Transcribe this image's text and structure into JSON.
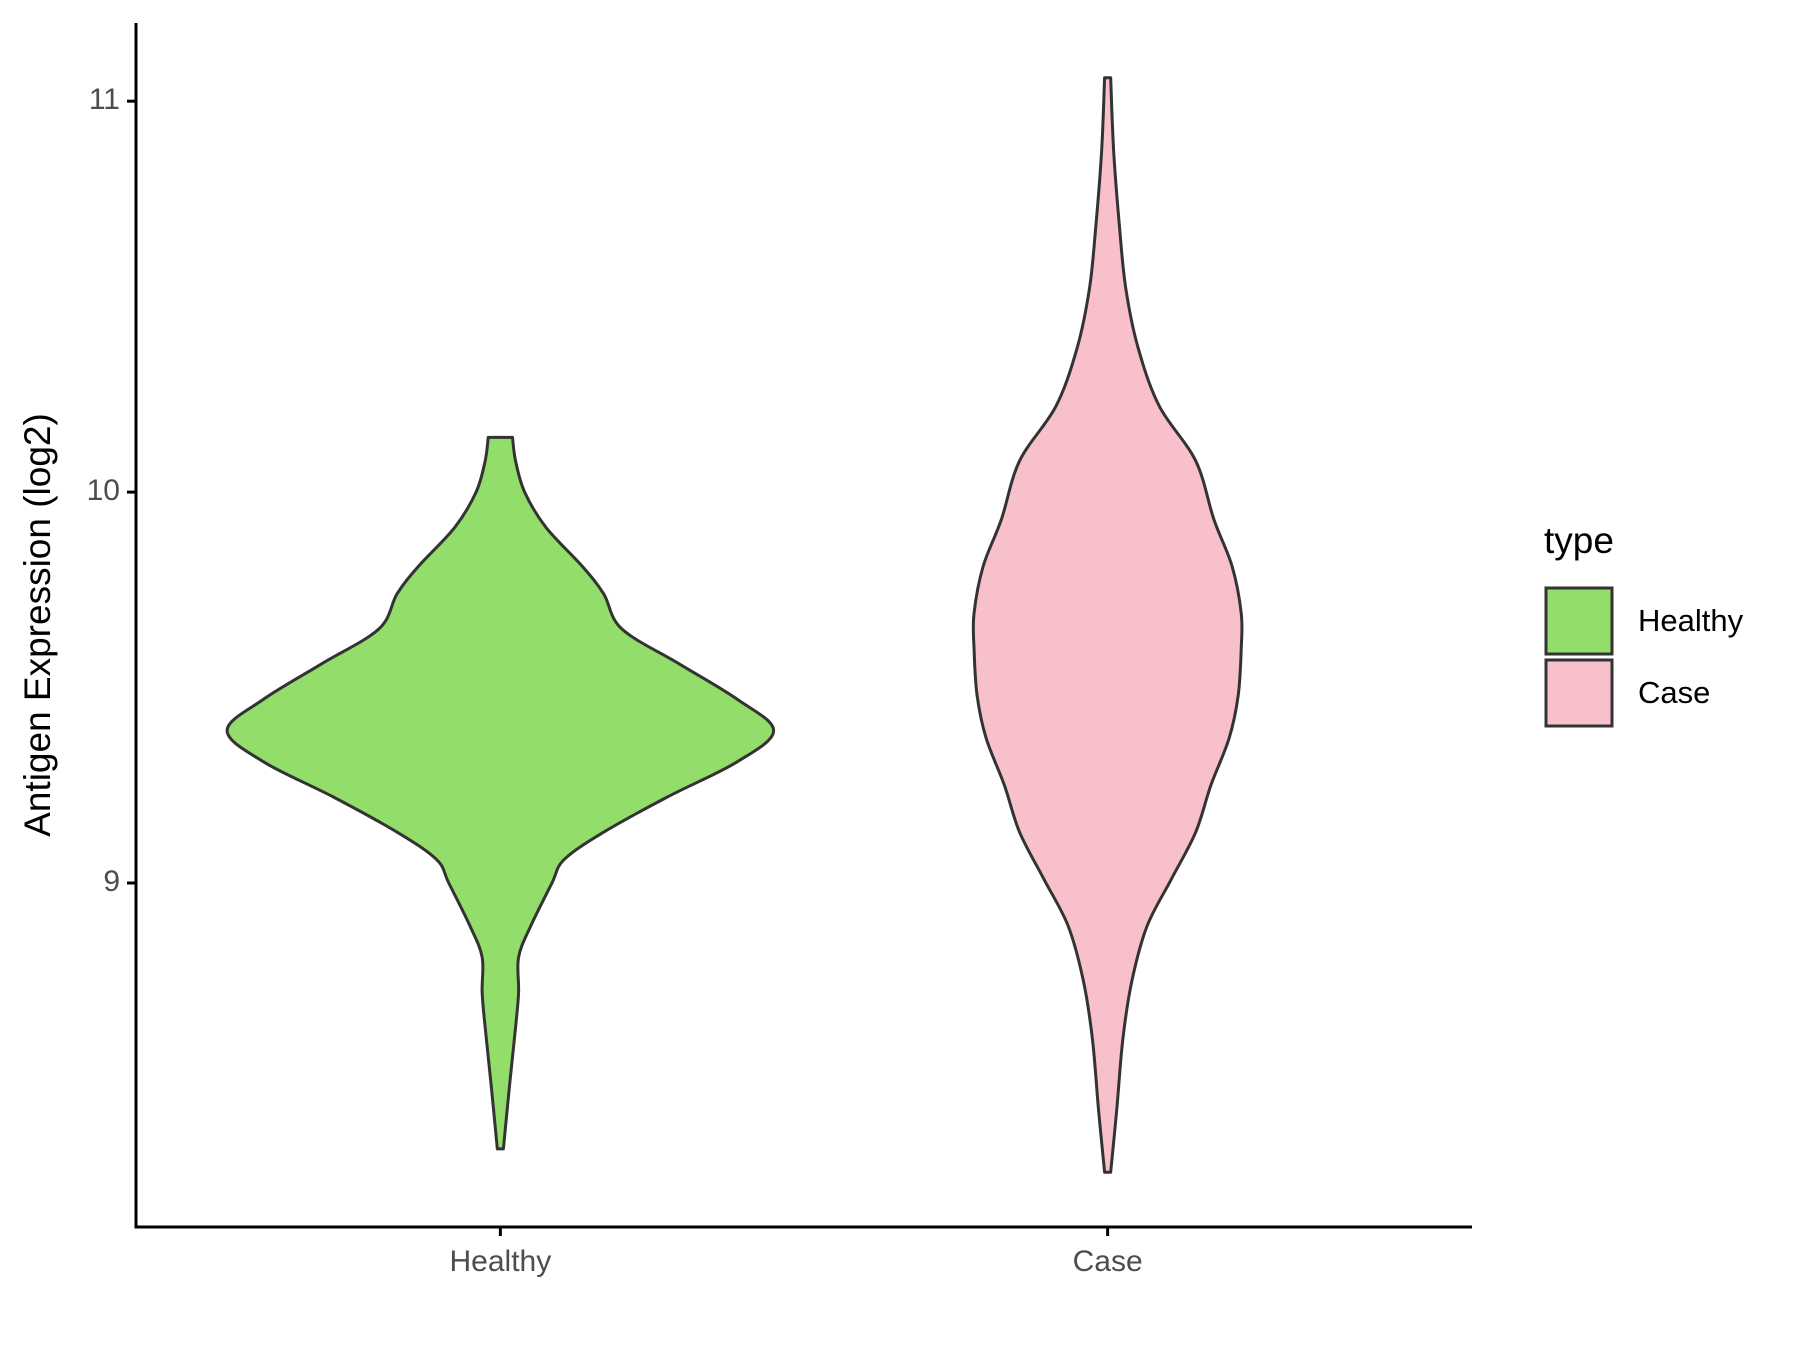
{
  "chart_data": {
    "type": "violin",
    "y_label": "Antigen Expression (log2)",
    "categories": [
      "Healthy",
      "Case"
    ],
    "legend_title": "type",
    "series": [
      {
        "name": "Healthy",
        "color": "#93dd6a",
        "y": [
          8.32,
          8.48,
          8.63,
          8.72,
          8.81,
          8.89,
          9.0,
          9.06,
          9.13,
          9.22,
          9.31,
          9.39,
          9.47,
          9.56,
          9.65,
          9.74,
          9.81,
          9.91,
          10.0,
          10.08,
          10.14
        ],
        "width": [
          0.01,
          0.03,
          0.05,
          0.06,
          0.06,
          0.1,
          0.17,
          0.21,
          0.34,
          0.55,
          0.78,
          0.9,
          0.78,
          0.59,
          0.4,
          0.34,
          0.27,
          0.15,
          0.08,
          0.05,
          0.04
        ]
      },
      {
        "name": "Case",
        "color": "#f7c0cb",
        "y": [
          8.26,
          8.42,
          8.6,
          8.75,
          8.89,
          9.01,
          9.13,
          9.25,
          9.37,
          9.48,
          9.6,
          9.69,
          9.81,
          9.93,
          10.08,
          10.22,
          10.37,
          10.52,
          10.67,
          10.87,
          11.06
        ],
        "width": [
          0.01,
          0.03,
          0.05,
          0.08,
          0.13,
          0.21,
          0.29,
          0.34,
          0.4,
          0.43,
          0.44,
          0.44,
          0.41,
          0.35,
          0.29,
          0.17,
          0.1,
          0.06,
          0.04,
          0.02,
          0.01
        ]
      }
    ],
    "ylim": [
      8.12,
      11.2
    ],
    "yticks": [
      9,
      10,
      11
    ],
    "grid": false,
    "legend": "right"
  }
}
